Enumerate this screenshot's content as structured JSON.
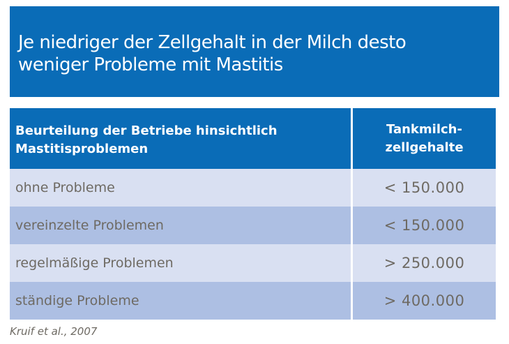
{
  "title": {
    "line1": "Je niedriger der Zellgehalt in der Milch desto",
    "line2": "weniger Probleme mit Mastitis"
  },
  "table": {
    "headers": {
      "col1_line1": "Beurteilung der Betriebe hinsichtlich",
      "col1_line2": "Mastitisproblemen",
      "col2_line1": "Tankmilch-",
      "col2_line2": "zellgehalte"
    },
    "rows": [
      {
        "assessment": "ohne Probleme",
        "cell_count": "< 150.000"
      },
      {
        "assessment": "vereinzelte Problemen",
        "cell_count": "< 150.000"
      },
      {
        "assessment": "regelmäßige Problemen",
        "cell_count": "> 250.000"
      },
      {
        "assessment": "ständige Probleme",
        "cell_count": "> 400.000"
      }
    ]
  },
  "source": "Kruif et al., 2007",
  "colors": {
    "brand_blue": "#0a6cb7",
    "row_light": "#d9e0f2",
    "row_dark": "#adbfe3",
    "text_gray": "#6e6a63"
  }
}
